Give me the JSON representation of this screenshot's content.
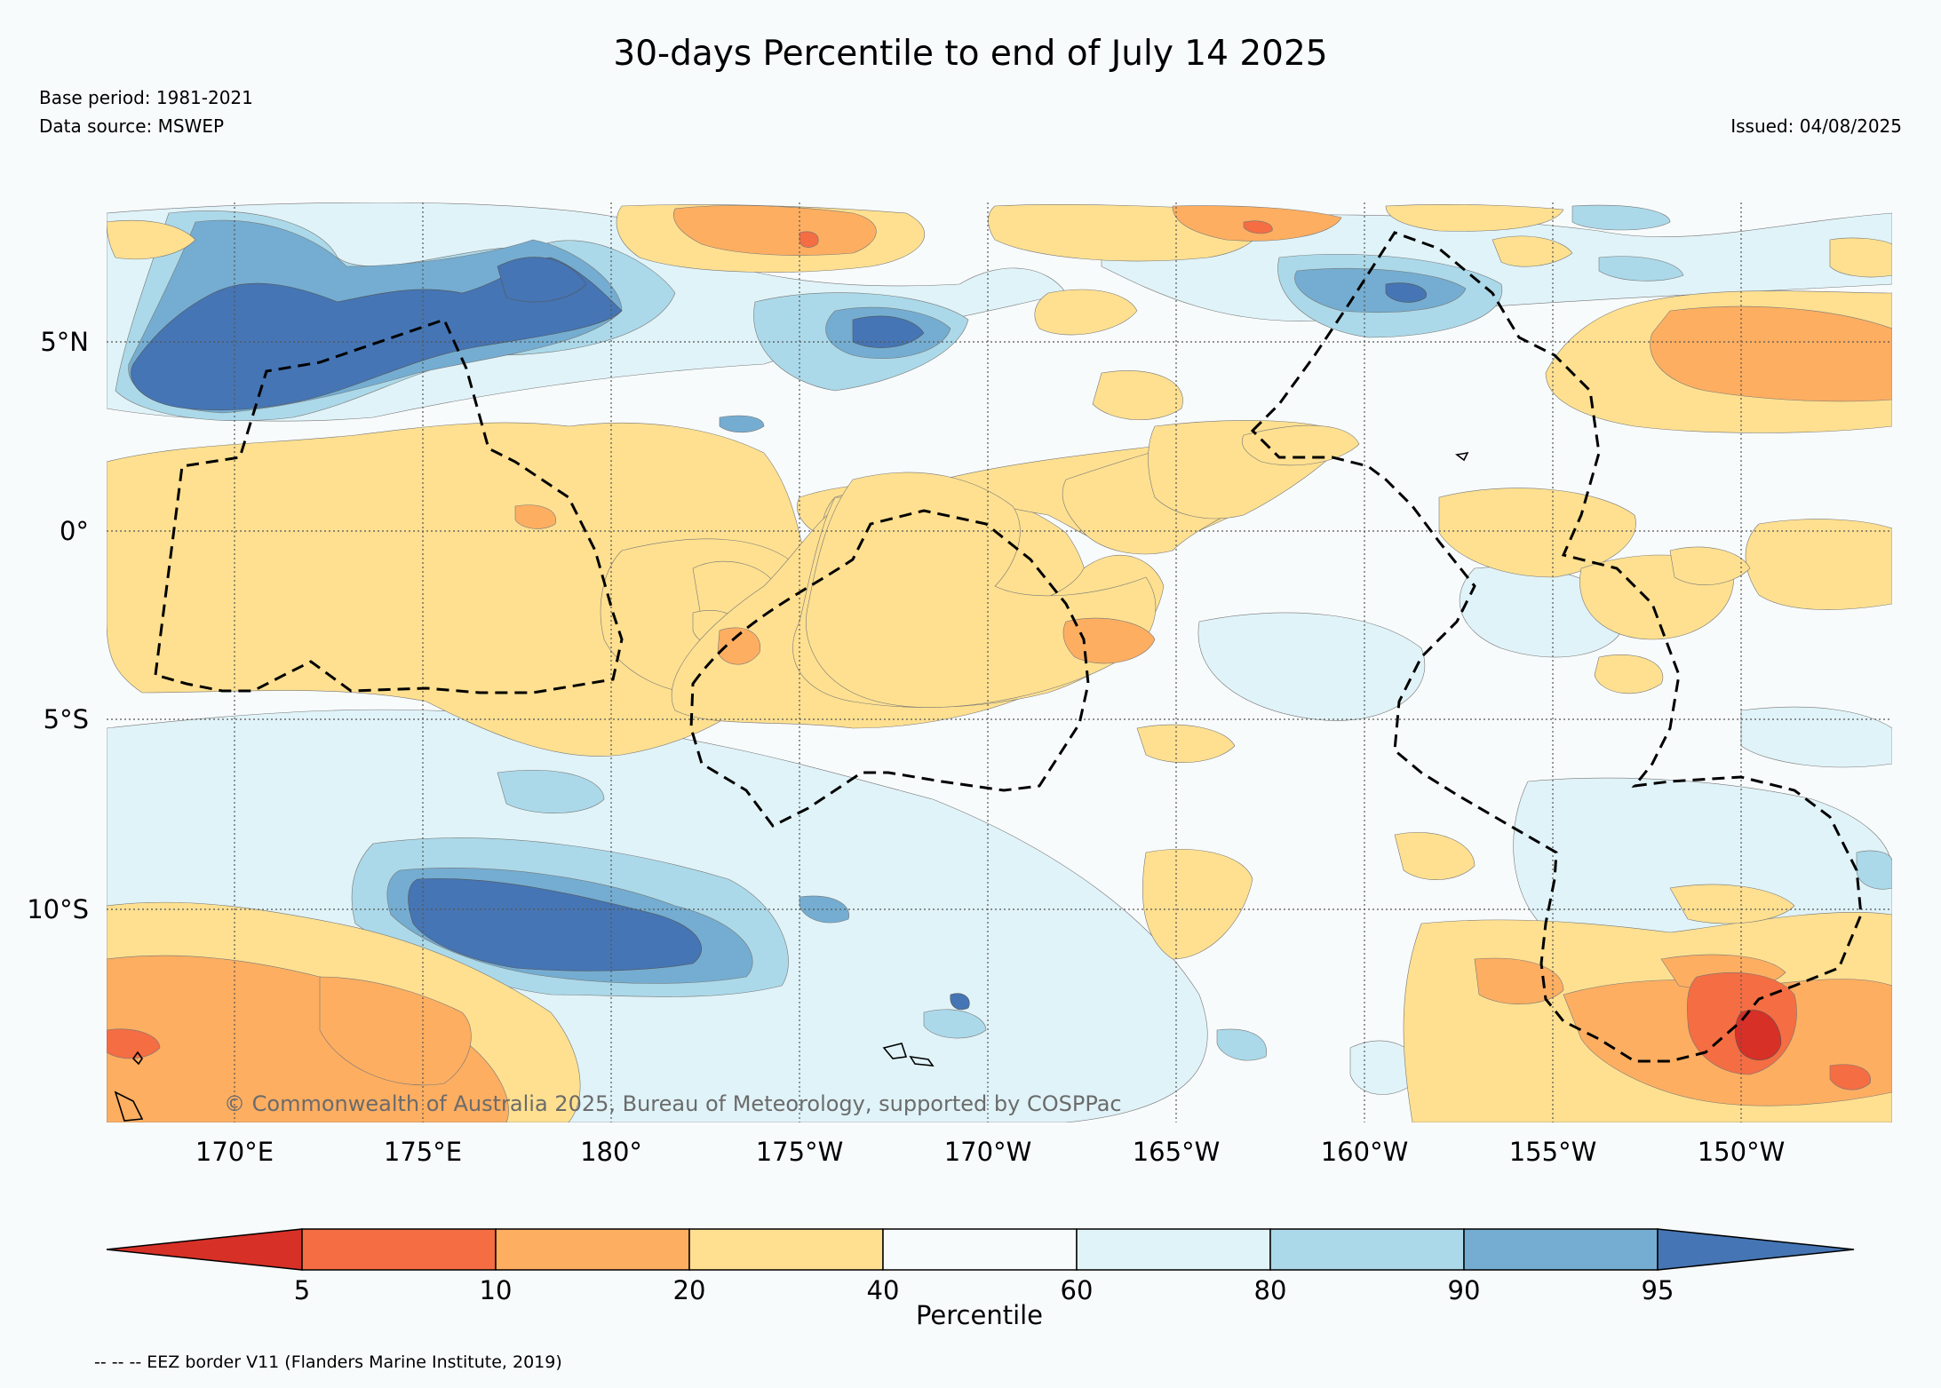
{
  "header": {
    "title": "30-days Percentile to end of July 14 2025",
    "base_period": "Base period: 1981-2021",
    "data_source": "Data source: MSWEP",
    "issued": "Issued: 04/08/2025"
  },
  "map": {
    "lat_ticks": [
      "5°N",
      "0°",
      "5°S",
      "10°S"
    ],
    "lon_ticks": [
      "170°E",
      "175°E",
      "180°",
      "175°W",
      "170°W",
      "165°W",
      "160°W",
      "155°W",
      "150°W"
    ],
    "copyright": "© Commonwealth of Australia 2025, Bureau of Meteorology, supported by COSPPac",
    "grid": "dotted",
    "eez_line_style": "dashed"
  },
  "colorbar": {
    "label": "Percentile",
    "ticks": [
      "5",
      "10",
      "20",
      "40",
      "60",
      "80",
      "90",
      "95"
    ],
    "colors": [
      "#d73027",
      "#f46d43",
      "#fdae61",
      "#fee090",
      "#f8fbfc",
      "#e0f3f8",
      "#abd9e9",
      "#74add1",
      "#4575b4"
    ]
  },
  "footnote": "-- -- -- EEZ border V11 (Flanders Marine Institute, 2019)"
}
